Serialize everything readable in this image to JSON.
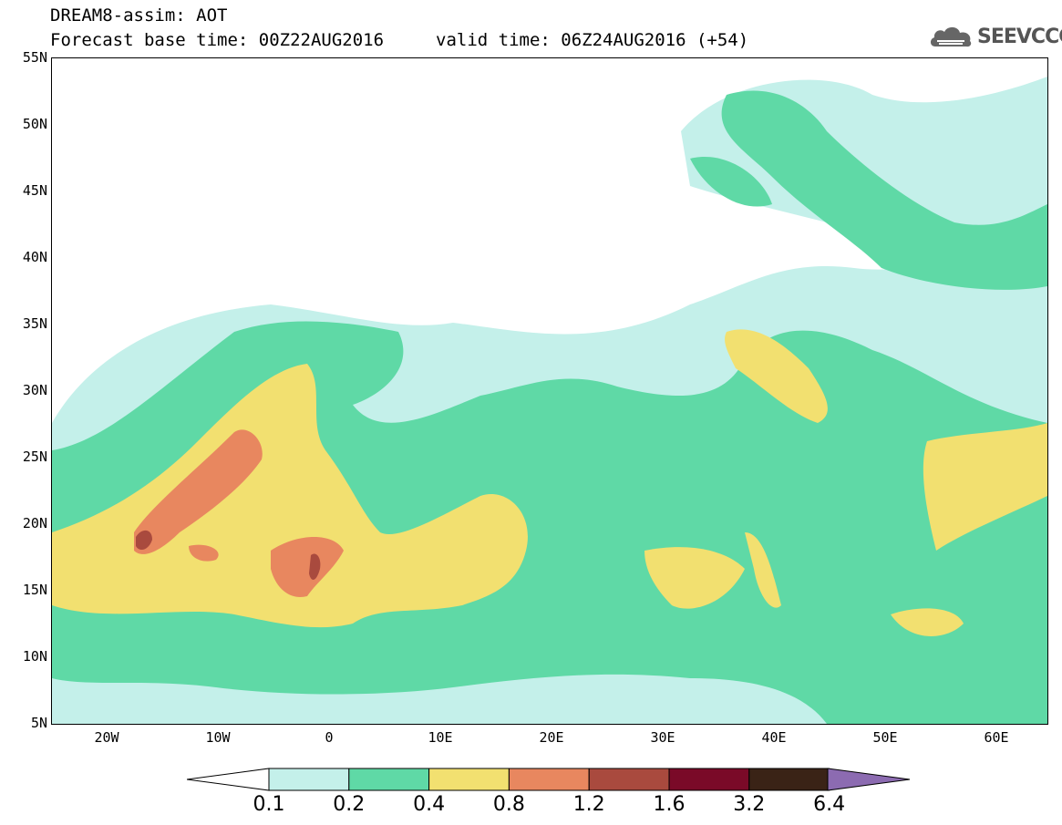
{
  "header": {
    "title": "DREAM8-assim: AOT",
    "base_time": "Forecast base time: 00Z22AUG2016",
    "valid_time": "valid time: 06Z24AUG2016 (+54)",
    "logo_text": "SEEVCCC",
    "logo_icon": "cloud-icon"
  },
  "map": {
    "lat_labels": [
      "55N",
      "50N",
      "45N",
      "40N",
      "35N",
      "30N",
      "25N",
      "20N",
      "15N",
      "10N",
      "5N"
    ],
    "lon_labels": [
      "20W",
      "10W",
      "0",
      "10E",
      "20E",
      "30E",
      "40E",
      "50E",
      "60E"
    ]
  },
  "colorbar": {
    "labels": [
      "0.1",
      "0.2",
      "0.4",
      "0.8",
      "1.2",
      "1.6",
      "3.2",
      "6.4"
    ],
    "colors": [
      "#ffffff",
      "#c4f0ea",
      "#5fd9a6",
      "#f2e070",
      "#e8875f",
      "#a94a3e",
      "#7a0a28",
      "#3a2316",
      "#8c6bb1"
    ]
  },
  "colors": {
    "c01": "#c4f0ea",
    "c02": "#5fd9a6",
    "c04": "#f2e070",
    "c08": "#e8875f",
    "c12": "#a94a3e",
    "c16": "#7a0a28",
    "c32": "#3a2316",
    "c64": "#8c6bb1"
  }
}
